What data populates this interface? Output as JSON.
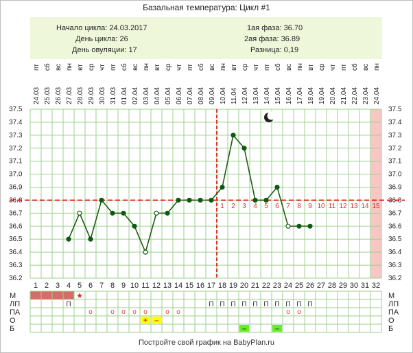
{
  "page": {
    "title": "Базальная температура: Цикл #1",
    "footer": "Постройте свой график на BabyPlan.ru"
  },
  "summary": {
    "cycle_start": "Начало цикла: 24.03.2017",
    "cycle_day": "День цикла: 26",
    "ovulation_day": "День овуляции: 17",
    "phase1": "1ая фаза: 36.70",
    "phase2": "2ая фаза: 36.89",
    "difference": "Разница: 0,19"
  },
  "colors": {
    "line": "#1e5c10",
    "marker": "#0e5a0e",
    "coverline": "#dd0000",
    "grid": "#9ccf8e",
    "highlight_col": "#f9c6c6",
    "phase2_numbers": "#d03030",
    "menstruation": "#d96a6a",
    "plus_cell": "#ffff00",
    "b_cell": "#66ee22"
  },
  "icons": {
    "moon": "crescent-moon-icon",
    "star": "red-star-icon"
  },
  "chart_data": {
    "type": "line",
    "dates": [
      "24.03",
      "25.03",
      "26.03",
      "27.03",
      "28.03",
      "29.03",
      "30.03",
      "31.03",
      "01.04",
      "02.04",
      "03.04",
      "04.04",
      "05.04",
      "06.04",
      "07.04",
      "08.04",
      "09.04",
      "10.04",
      "11.04",
      "12.04",
      "13.04",
      "14.04",
      "15.04",
      "16.04",
      "17.04",
      "18.04",
      "19.04",
      "20.04",
      "21.04",
      "22.04",
      "23.04",
      "24.04"
    ],
    "weekdays": [
      "пт",
      "сб",
      "вс",
      "пн",
      "вт",
      "ср",
      "чт",
      "пт",
      "сб",
      "вс",
      "пн",
      "вт",
      "ср",
      "чт",
      "пт",
      "сб",
      "вс",
      "пн",
      "вт",
      "ср",
      "чт",
      "пт",
      "сб",
      "вс",
      "пн",
      "вт",
      "ср",
      "чт",
      "пт",
      "сб",
      "вс",
      "пн"
    ],
    "days": [
      1,
      2,
      3,
      4,
      5,
      6,
      7,
      8,
      9,
      10,
      11,
      12,
      13,
      14,
      15,
      16,
      17,
      18,
      19,
      20,
      21,
      22,
      23,
      24,
      25,
      26,
      27,
      28,
      29,
      30,
      31,
      32
    ],
    "temperatures": [
      null,
      null,
      null,
      36.5,
      36.7,
      36.5,
      36.8,
      36.7,
      36.7,
      36.6,
      36.4,
      36.7,
      36.7,
      36.8,
      36.8,
      36.8,
      36.8,
      36.9,
      37.3,
      37.2,
      36.8,
      36.8,
      36.9,
      36.6,
      36.6,
      36.6,
      null,
      null,
      null,
      null,
      null,
      null
    ],
    "hollow_points": [
      5,
      11,
      12,
      24
    ],
    "y_ticks": [
      "36.2",
      "36.3",
      "36.4",
      "36.5",
      "36.6",
      "36.7",
      "36.8",
      "36.9",
      "37.0",
      "37.1",
      "37.2",
      "37.3",
      "37.4",
      "37.5"
    ],
    "ylim": [
      36.2,
      37.5
    ],
    "coverline": 36.8,
    "ovulation_day": 17,
    "highlight_day": 32,
    "phase2_labels": [
      "1",
      "2",
      "3",
      "4",
      "5",
      "6",
      "7",
      "8",
      "9",
      "10",
      "11",
      "12",
      "13",
      "14",
      "15"
    ],
    "moon_day": 22,
    "rows": {
      "labels": [
        "М",
        "ЛП",
        "ПА",
        "О",
        "Б"
      ],
      "menstruation_days": [
        1,
        2,
        3,
        4
      ],
      "star_day": 5,
      "star_symbol": "★",
      "lp_symbol": "П",
      "lp_days": [
        4,
        17,
        18,
        19,
        20,
        21,
        22,
        23,
        24,
        25,
        26
      ],
      "pa_symbol": "о",
      "pa_days": [
        6,
        8,
        9,
        10,
        11,
        13,
        14,
        24,
        25
      ],
      "o_marks": [
        {
          "day": 11,
          "symbol": "+"
        },
        {
          "day": 12,
          "symbol": "–"
        }
      ],
      "b_marks": [
        {
          "day": 20,
          "symbol": "–"
        },
        {
          "day": 23,
          "symbol": "–"
        }
      ]
    }
  }
}
